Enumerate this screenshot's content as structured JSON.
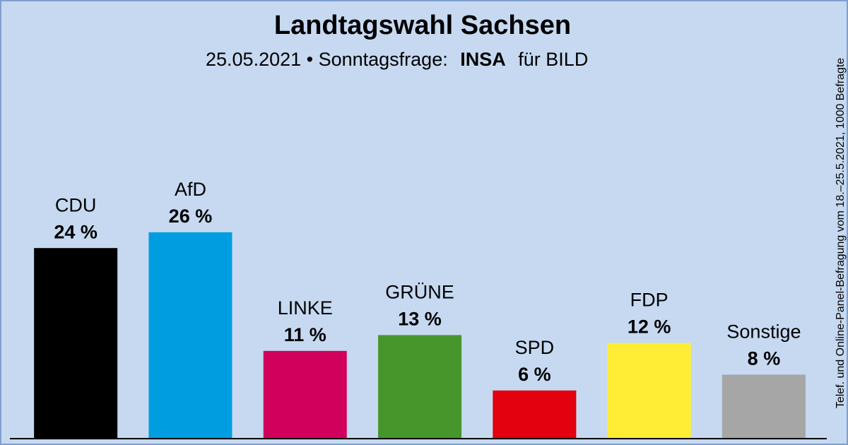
{
  "chart_data": {
    "type": "bar",
    "title": "Landtagswahl Sachsen",
    "subtitle": "25.05.2021 • Sonntagsfrage:",
    "pollster": "INSA",
    "client": "für BILD",
    "note": "Telef. und Online-Panel-Befragung vom 18.–25.5.2021, 1000 Befragte",
    "categories": [
      "CDU",
      "AfD",
      "LINKE",
      "GRÜNE",
      "SPD",
      "FDP",
      "Sonstige"
    ],
    "values": [
      24,
      26,
      11,
      13,
      6,
      12,
      8
    ],
    "value_labels": [
      "24 %",
      "26 %",
      "11 %",
      "13 %",
      "6 %",
      "12 %",
      "8 %"
    ],
    "colors": [
      "#000000",
      "#009ee0",
      "#d1005c",
      "#46962b",
      "#e3000f",
      "#ffed35",
      "#a6a6a6"
    ]
  }
}
